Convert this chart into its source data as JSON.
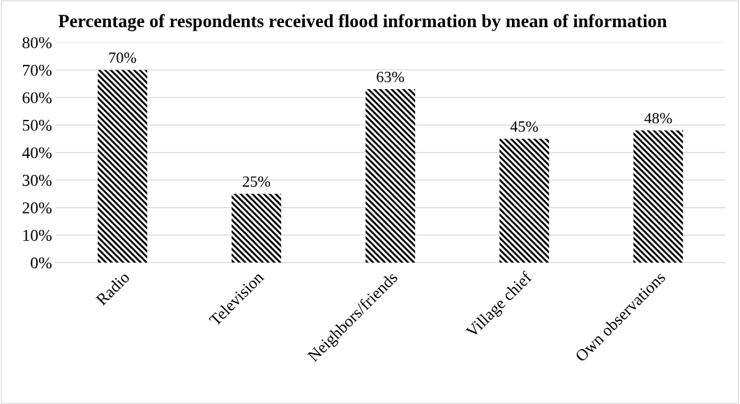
{
  "chart_data": {
    "type": "bar",
    "title": "Percentage of respondents received flood information by mean of information",
    "categories": [
      "Radio",
      "Television",
      "Neighbors/friends",
      "Village chief",
      "Own observations"
    ],
    "values": [
      70,
      25,
      63,
      45,
      48
    ],
    "value_labels": [
      "70%",
      "25%",
      "63%",
      "45%",
      "48%"
    ],
    "color": "#000000",
    "ylim": [
      0,
      80
    ],
    "yticks": [
      {
        "value": 0,
        "label": "0%"
      },
      {
        "value": 10,
        "label": "10%"
      },
      {
        "value": 20,
        "label": "20%"
      },
      {
        "value": 30,
        "label": "30%"
      },
      {
        "value": 40,
        "label": "40%"
      },
      {
        "value": 50,
        "label": "50%"
      },
      {
        "value": 60,
        "label": "60%"
      },
      {
        "value": 70,
        "label": "70%"
      },
      {
        "value": 80,
        "label": "80%"
      }
    ],
    "grid": "y",
    "legend": false
  }
}
